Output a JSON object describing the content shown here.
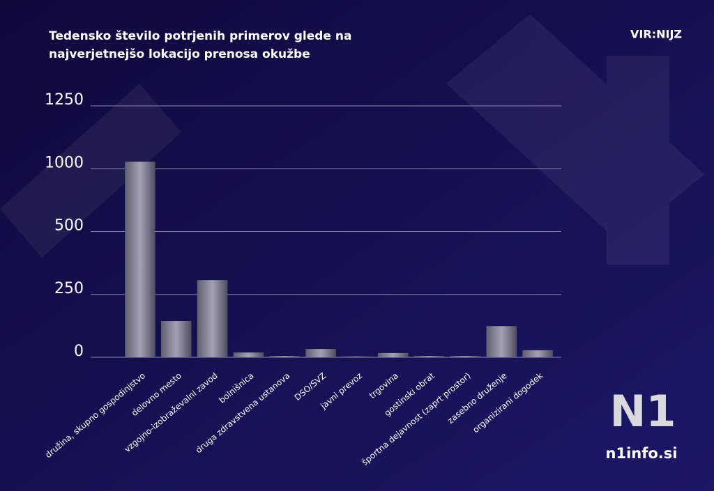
{
  "source": "VIR:NIJZ",
  "logo": "N1",
  "site": "n1info.si",
  "chart_data": {
    "type": "bar",
    "title": "Tedensko število potrjenih primerov glede na najverjetnejšo lokacijo prenosa okužbe",
    "categories": [
      "družina, skupno gospodinjstvo",
      "delovno mesto",
      "vzgojno-izobraževalni zavod",
      "bolnišnica",
      "druga zdravstvena ustanova",
      "DSO/SVZ",
      "javni prevoz",
      "trgovina",
      "gostinski obrat",
      "športna dejavnost (zaprt prostor)",
      "zasebno druženje",
      "organizirani dogodek"
    ],
    "values": [
      1028,
      144,
      307,
      19,
      5,
      33,
      3,
      17,
      5,
      5,
      124,
      28
    ],
    "color": "#8e8c9e",
    "ylim": [
      0,
      1250
    ],
    "yticks": [
      0,
      250,
      500,
      1000,
      1250
    ],
    "grid": true
  }
}
